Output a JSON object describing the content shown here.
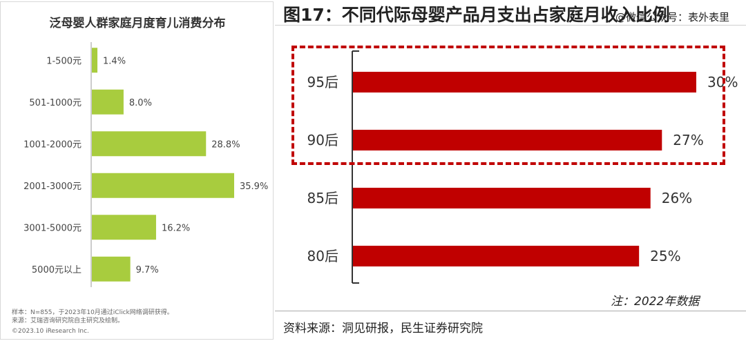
{
  "chart_data": [
    {
      "type": "bar",
      "orientation": "horizontal",
      "title": "泛母婴人群家庭月度育儿消费分布",
      "categories": [
        "1-500元",
        "501-1000元",
        "1001-2000元",
        "2001-3000元",
        "3001-5000元",
        "5000元以上"
      ],
      "values": [
        1.4,
        8.0,
        28.8,
        35.9,
        16.2,
        9.7
      ],
      "labels": [
        "1.4%",
        "8.0%",
        "28.8%",
        "35.9%",
        "16.2%",
        "9.7%"
      ],
      "xlim": [
        0,
        40
      ],
      "grid": false,
      "colors": {
        "bar": "#a8cc3e"
      },
      "footnotes": {
        "sample": "样本：N=855，于2023年10月通过iClick网络调研获得。",
        "source": "来源：艾瑞咨询研究院自主研究及绘制。",
        "copyright": "©2023.10 iResearch Inc."
      }
    },
    {
      "type": "bar",
      "orientation": "horizontal",
      "title": "图17：不同代际母婴产品月支出占家庭月收入比例",
      "categories": [
        "95后",
        "90后",
        "85后",
        "80后"
      ],
      "values": [
        30,
        27,
        26,
        25
      ],
      "labels": [
        "30%",
        "27%",
        "26%",
        "25%"
      ],
      "xlim": [
        0,
        30
      ],
      "grid": false,
      "colors": {
        "bar": "#c00000",
        "highlight": "#c00000"
      },
      "note": "注：2022年数据",
      "source": "资料来源：洞见研报，民生证券研究院",
      "watermark": "@微信公众号：表外表里"
    }
  ]
}
